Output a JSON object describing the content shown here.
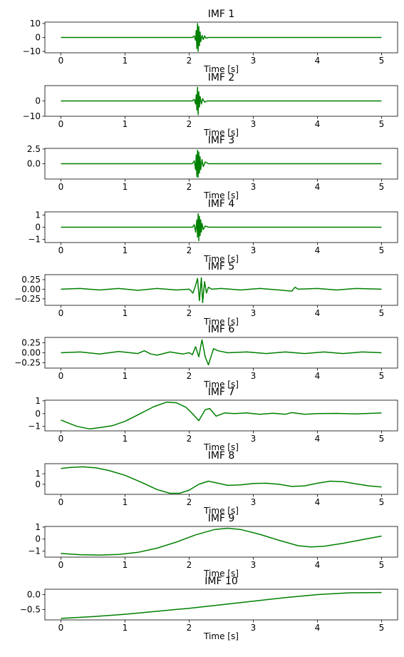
{
  "chart_data": [
    {
      "type": "line",
      "title": "IMF 1",
      "xlabel": "Time [s]",
      "ylabel": "",
      "xlim": [
        -0.25,
        5.25
      ],
      "ylim": [
        -11,
        11
      ],
      "yticks": [
        {
          "v": 10,
          "label": "10"
        },
        {
          "v": 0,
          "label": "0"
        },
        {
          "v": -10,
          "label": "−10"
        }
      ],
      "xticks": [
        {
          "v": 0,
          "label": "0"
        },
        {
          "v": 1,
          "label": "1"
        },
        {
          "v": 2,
          "label": "2"
        },
        {
          "v": 3,
          "label": "3"
        },
        {
          "v": 4,
          "label": "4"
        },
        {
          "v": 5,
          "label": "5"
        }
      ],
      "x": [
        0,
        2.05,
        2.08,
        2.1,
        2.11,
        2.12,
        2.13,
        2.14,
        2.15,
        2.16,
        2.17,
        2.18,
        2.2,
        2.22,
        2.24,
        2.26,
        2.3,
        5
      ],
      "y": [
        0,
        0,
        1,
        -2,
        5,
        -8,
        10,
        -10,
        8,
        -6,
        4,
        -3,
        1.5,
        -1.5,
        1.2,
        -0.5,
        0,
        0
      ]
    },
    {
      "type": "line",
      "title": "IMF 2",
      "xlabel": "Time [s]",
      "ylabel": "",
      "xlim": [
        -0.25,
        5.25
      ],
      "ylim": [
        -10,
        10
      ],
      "yticks": [
        {
          "v": 0,
          "label": "0"
        },
        {
          "v": -10,
          "label": "−10"
        }
      ],
      "xticks": [
        {
          "v": 0,
          "label": "0"
        },
        {
          "v": 1,
          "label": "1"
        },
        {
          "v": 2,
          "label": "2"
        },
        {
          "v": 3,
          "label": "3"
        },
        {
          "v": 4,
          "label": "4"
        },
        {
          "v": 5,
          "label": "5"
        }
      ],
      "x": [
        0,
        2.05,
        2.08,
        2.1,
        2.11,
        2.12,
        2.13,
        2.14,
        2.15,
        2.16,
        2.17,
        2.19,
        2.21,
        2.24,
        2.28,
        5
      ],
      "y": [
        0,
        0,
        1,
        -2,
        4,
        -6,
        9,
        -9,
        6,
        -4,
        3,
        -2,
        1.5,
        -0.8,
        0,
        0
      ]
    },
    {
      "type": "line",
      "title": "IMF 3",
      "xlabel": "Time [s]",
      "ylabel": "",
      "xlim": [
        -0.25,
        5.25
      ],
      "ylim": [
        -2.6,
        2.6
      ],
      "yticks": [
        {
          "v": 2.5,
          "label": "2.5"
        },
        {
          "v": 0,
          "label": "0.0"
        }
      ],
      "xticks": [
        {
          "v": 0,
          "label": "0"
        },
        {
          "v": 1,
          "label": "1"
        },
        {
          "v": 2,
          "label": "2"
        },
        {
          "v": 3,
          "label": "3"
        },
        {
          "v": 4,
          "label": "4"
        },
        {
          "v": 5,
          "label": "5"
        }
      ],
      "x": [
        0,
        2.05,
        2.08,
        2.1,
        2.11,
        2.12,
        2.13,
        2.14,
        2.15,
        2.16,
        2.17,
        2.18,
        2.2,
        2.22,
        2.25,
        2.3,
        5
      ],
      "y": [
        0,
        0,
        0.5,
        -1,
        1.5,
        -2.2,
        2.3,
        -2.3,
        2,
        -1.6,
        1.2,
        -1,
        0.7,
        -0.5,
        0.3,
        0,
        0
      ]
    },
    {
      "type": "line",
      "title": "IMF 4",
      "xlabel": "Time [s]",
      "ylabel": "",
      "xlim": [
        -0.25,
        5.25
      ],
      "ylim": [
        -1.25,
        1.25
      ],
      "yticks": [
        {
          "v": 1,
          "label": "1"
        },
        {
          "v": 0,
          "label": "0"
        },
        {
          "v": -1,
          "label": "−1"
        }
      ],
      "xticks": [
        {
          "v": 0,
          "label": "0"
        },
        {
          "v": 1,
          "label": "1"
        },
        {
          "v": 2,
          "label": "2"
        },
        {
          "v": 3,
          "label": "3"
        },
        {
          "v": 4,
          "label": "4"
        },
        {
          "v": 5,
          "label": "5"
        }
      ],
      "x": [
        0,
        2.05,
        2.08,
        2.1,
        2.12,
        2.13,
        2.14,
        2.15,
        2.16,
        2.17,
        2.18,
        2.19,
        2.2,
        2.22,
        2.25,
        2.3,
        5
      ],
      "y": [
        0,
        0,
        0.2,
        -0.4,
        0.6,
        -0.8,
        1.1,
        -1.1,
        0.9,
        -0.7,
        0.6,
        -0.4,
        0.3,
        -0.2,
        0.1,
        0,
        0
      ]
    },
    {
      "type": "line",
      "title": "IMF 5",
      "xlabel": "Time [s]",
      "ylabel": "",
      "xlim": [
        -0.25,
        5.25
      ],
      "ylim": [
        -0.42,
        0.38
      ],
      "yticks": [
        {
          "v": 0.25,
          "label": "0.25"
        },
        {
          "v": 0,
          "label": "0.00"
        },
        {
          "v": -0.25,
          "label": "−0.25"
        }
      ],
      "xticks": [
        {
          "v": 0,
          "label": "0"
        },
        {
          "v": 1,
          "label": "1"
        },
        {
          "v": 2,
          "label": "2"
        },
        {
          "v": 3,
          "label": "3"
        },
        {
          "v": 4,
          "label": "4"
        },
        {
          "v": 5,
          "label": "5"
        }
      ],
      "x": [
        0,
        0.3,
        0.6,
        0.9,
        1.2,
        1.5,
        1.8,
        2.0,
        2.06,
        2.1,
        2.13,
        2.16,
        2.19,
        2.21,
        2.24,
        2.27,
        2.3,
        2.35,
        2.5,
        2.8,
        3.1,
        3.4,
        3.6,
        3.65,
        3.7,
        4.0,
        4.3,
        4.6,
        5
      ],
      "y": [
        0,
        0.02,
        -0.02,
        0.02,
        -0.03,
        0.02,
        -0.02,
        0.0,
        -0.1,
        0.1,
        0.28,
        -0.3,
        0.3,
        -0.35,
        0.2,
        -0.1,
        0.05,
        0,
        0.02,
        -0.02,
        0.02,
        -0.02,
        -0.05,
        0.05,
        0,
        0.02,
        -0.02,
        0.02,
        0
      ]
    },
    {
      "type": "line",
      "title": "IMF 6",
      "xlabel": "Time [s]",
      "ylabel": "",
      "xlim": [
        -0.25,
        5.25
      ],
      "ylim": [
        -0.38,
        0.38
      ],
      "yticks": [
        {
          "v": 0.25,
          "label": "0.25"
        },
        {
          "v": 0,
          "label": "0.00"
        },
        {
          "v": -0.25,
          "label": "−0.25"
        }
      ],
      "xticks": [
        {
          "v": 0,
          "label": "0"
        },
        {
          "v": 1,
          "label": "1"
        },
        {
          "v": 2,
          "label": "2"
        },
        {
          "v": 3,
          "label": "3"
        },
        {
          "v": 4,
          "label": "4"
        },
        {
          "v": 5,
          "label": "5"
        }
      ],
      "x": [
        0,
        0.3,
        0.6,
        0.9,
        1.2,
        1.3,
        1.4,
        1.5,
        1.7,
        1.9,
        2.0,
        2.05,
        2.1,
        2.15,
        2.2,
        2.25,
        2.3,
        2.38,
        2.45,
        2.6,
        2.9,
        3.2,
        3.5,
        3.8,
        4.1,
        4.4,
        4.7,
        5
      ],
      "y": [
        0,
        0.02,
        -0.03,
        0.03,
        -0.02,
        0.05,
        -0.03,
        -0.06,
        0.02,
        -0.03,
        0,
        -0.05,
        0.15,
        -0.1,
        0.32,
        -0.1,
        -0.3,
        0.1,
        0.05,
        0,
        0.02,
        -0.02,
        0.02,
        -0.02,
        0.02,
        -0.02,
        0.02,
        0
      ]
    },
    {
      "type": "line",
      "title": "IMF 7",
      "xlabel": "Time [s]",
      "ylabel": "",
      "xlim": [
        -0.25,
        5.25
      ],
      "ylim": [
        -1.35,
        1.05
      ],
      "yticks": [
        {
          "v": 1,
          "label": "1"
        },
        {
          "v": 0,
          "label": "0"
        },
        {
          "v": -1,
          "label": "−1"
        }
      ],
      "xticks": [
        {
          "v": 0,
          "label": "0"
        },
        {
          "v": 1,
          "label": "1"
        },
        {
          "v": 2,
          "label": "2"
        },
        {
          "v": 3,
          "label": "3"
        },
        {
          "v": 4,
          "label": "4"
        },
        {
          "v": 5,
          "label": "5"
        }
      ],
      "x": [
        0,
        0.1,
        0.25,
        0.45,
        0.6,
        0.8,
        1.0,
        1.2,
        1.45,
        1.65,
        1.8,
        1.95,
        2.05,
        2.15,
        2.25,
        2.32,
        2.42,
        2.55,
        2.7,
        2.9,
        3.1,
        3.3,
        3.5,
        3.6,
        3.8,
        4.0,
        4.3,
        4.6,
        5
      ],
      "y": [
        -0.5,
        -0.7,
        -1.0,
        -1.2,
        -1.1,
        -0.95,
        -0.6,
        -0.1,
        0.55,
        0.9,
        0.85,
        0.5,
        0.0,
        -0.55,
        0.3,
        0.4,
        -0.2,
        0.05,
        0.0,
        0.05,
        -0.05,
        0.03,
        -0.05,
        0.08,
        -0.05,
        0.0,
        0.02,
        -0.02,
        0.05
      ]
    },
    {
      "type": "line",
      "title": "IMF 8",
      "xlabel": "Time [s]",
      "ylabel": "",
      "xlim": [
        -0.25,
        5.25
      ],
      "ylim": [
        -0.95,
        1.95
      ],
      "yticks": [
        {
          "v": 1,
          "label": "1"
        },
        {
          "v": 0,
          "label": "0"
        }
      ],
      "xticks": [
        {
          "v": 0,
          "label": "0"
        },
        {
          "v": 1,
          "label": "1"
        },
        {
          "v": 2,
          "label": "2"
        },
        {
          "v": 3,
          "label": "3"
        },
        {
          "v": 4,
          "label": "4"
        },
        {
          "v": 5,
          "label": "5"
        }
      ],
      "x": [
        0,
        0.15,
        0.35,
        0.55,
        0.75,
        1.0,
        1.25,
        1.5,
        1.7,
        1.85,
        2.0,
        2.15,
        2.3,
        2.45,
        2.6,
        2.8,
        3.0,
        3.2,
        3.4,
        3.6,
        3.8,
        4.0,
        4.2,
        4.4,
        4.6,
        4.8,
        5
      ],
      "y": [
        1.5,
        1.6,
        1.65,
        1.55,
        1.3,
        0.85,
        0.2,
        -0.5,
        -0.85,
        -0.85,
        -0.55,
        0.0,
        0.3,
        0.1,
        -0.1,
        -0.05,
        0.08,
        0.1,
        0.0,
        -0.2,
        -0.15,
        0.1,
        0.3,
        0.25,
        0.05,
        -0.15,
        -0.25
      ]
    },
    {
      "type": "line",
      "title": "IMF 9",
      "xlabel": "Time [s]",
      "ylabel": "",
      "xlim": [
        -0.25,
        5.25
      ],
      "ylim": [
        -1.5,
        1.05
      ],
      "yticks": [
        {
          "v": 1,
          "label": "1"
        },
        {
          "v": 0,
          "label": "0"
        },
        {
          "v": -1,
          "label": "−1"
        }
      ],
      "xticks": [
        {
          "v": 0,
          "label": "0"
        },
        {
          "v": 1,
          "label": "1"
        },
        {
          "v": 2,
          "label": "2"
        },
        {
          "v": 3,
          "label": "3"
        },
        {
          "v": 4,
          "label": "4"
        },
        {
          "v": 5,
          "label": "5"
        }
      ],
      "x": [
        0,
        0.3,
        0.6,
        0.9,
        1.2,
        1.5,
        1.8,
        2.1,
        2.4,
        2.6,
        2.8,
        3.1,
        3.4,
        3.7,
        3.9,
        4.1,
        4.4,
        4.7,
        5
      ],
      "y": [
        -1.2,
        -1.3,
        -1.33,
        -1.28,
        -1.1,
        -0.75,
        -0.25,
        0.35,
        0.8,
        0.9,
        0.8,
        0.4,
        -0.1,
        -0.55,
        -0.65,
        -0.6,
        -0.35,
        -0.05,
        0.25
      ]
    },
    {
      "type": "line",
      "title": "IMF 10",
      "xlabel": "Time [s]",
      "ylabel": "",
      "xlim": [
        -0.25,
        5.25
      ],
      "ylim": [
        -0.85,
        0.18
      ],
      "yticks": [
        {
          "v": 0,
          "label": "0.0"
        },
        {
          "v": -0.5,
          "label": "−0.5"
        }
      ],
      "xticks": [
        {
          "v": 0,
          "label": "0"
        },
        {
          "v": 1,
          "label": "1"
        },
        {
          "v": 2,
          "label": "2"
        },
        {
          "v": 3,
          "label": "3"
        },
        {
          "v": 4,
          "label": "4"
        },
        {
          "v": 5,
          "label": "5"
        }
      ],
      "x": [
        0,
        0.5,
        1.0,
        1.5,
        2.0,
        2.5,
        3.0,
        3.5,
        4.0,
        4.5,
        5
      ],
      "y": [
        -0.8,
        -0.74,
        -0.66,
        -0.56,
        -0.46,
        -0.34,
        -0.22,
        -0.1,
        0.0,
        0.06,
        0.07
      ]
    }
  ],
  "style": {
    "line_color": "#008000",
    "axes_color": "#000000",
    "background": "#ffffff"
  }
}
